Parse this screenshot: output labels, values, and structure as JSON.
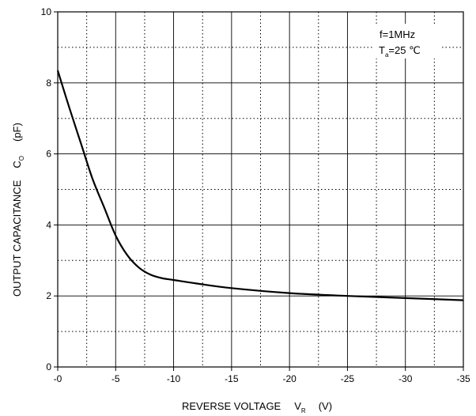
{
  "chart_data": {
    "type": "line",
    "title": "",
    "xlabel": {
      "prefix": "REVERSE VOLTAGE",
      "symbol": "V",
      "subscript": "R",
      "unit": "(V)"
    },
    "ylabel": {
      "prefix": "OUTPUT CAPACITANCE",
      "symbol": "C",
      "subscript": "O",
      "unit": "(pF)"
    },
    "xlim": [
      0,
      -35
    ],
    "ylim": [
      0,
      10
    ],
    "x_ticks": [
      0,
      -5,
      -10,
      -15,
      -20,
      -25,
      -30,
      -35
    ],
    "x_tick_labels": [
      "-0",
      "-5",
      "-10",
      "-15",
      "-20",
      "-25",
      "-30",
      "-35"
    ],
    "x_minor_ticks": [
      -2.5,
      -7.5,
      -12.5,
      -17.5,
      -22.5,
      -27.5,
      -32.5
    ],
    "y_ticks": [
      0,
      2,
      4,
      6,
      8,
      10
    ],
    "y_tick_labels": [
      "0",
      "2",
      "4",
      "6",
      "8",
      "10"
    ],
    "y_minor_ticks": [
      1,
      3,
      5,
      7,
      9
    ],
    "grid": true,
    "annotation": {
      "line1": "f=1MHz",
      "line2_symbol": "T",
      "line2_subscript": "a",
      "line2_value": "=25 ℃"
    },
    "series": [
      {
        "x": [
          0,
          -1,
          -2,
          -3,
          -4,
          -5,
          -6,
          -7,
          -8,
          -9,
          -10,
          -12,
          -15,
          -20,
          -25,
          -30,
          -35
        ],
        "y": [
          8.35,
          7.3,
          6.3,
          5.3,
          4.5,
          3.7,
          3.15,
          2.8,
          2.6,
          2.5,
          2.45,
          2.35,
          2.22,
          2.08,
          2.0,
          1.94,
          1.88
        ]
      }
    ]
  }
}
